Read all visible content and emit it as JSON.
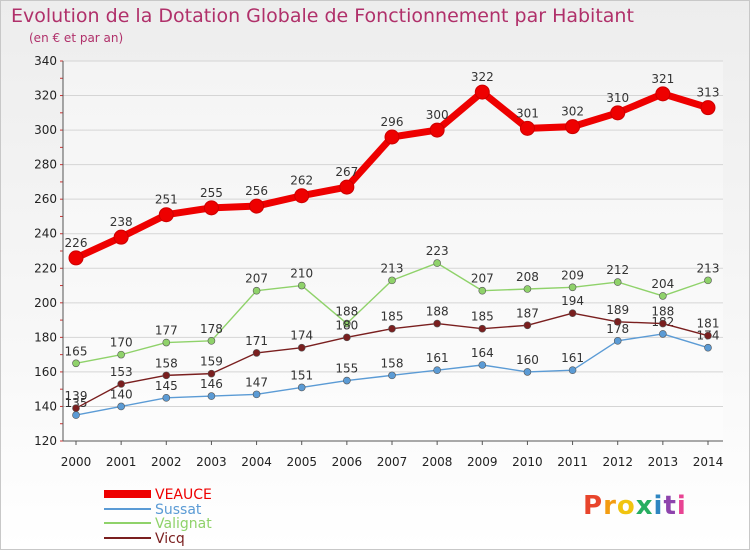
{
  "header": {
    "title": "Evolution de la Dotation Globale de Fonctionnement par Habitant",
    "subtitle": "(en € et par an)"
  },
  "logo": {
    "text": "Proxiti",
    "letters": [
      "P",
      "r",
      "o",
      "x",
      "i",
      "t",
      "i"
    ],
    "colors": [
      "#e8452c",
      "#f39c12",
      "#f1c40f",
      "#27ae60",
      "#2e86c1",
      "#8e44ad",
      "#e84393"
    ]
  },
  "chart_data": {
    "type": "line",
    "title": "Evolution de la Dotation Globale de Fonctionnement par Habitant",
    "subtitle": "(en € et par an)",
    "xlabel": "",
    "ylabel": "",
    "ylim": [
      120,
      340
    ],
    "yticks": [
      120,
      140,
      160,
      180,
      200,
      220,
      240,
      260,
      280,
      300,
      320,
      340
    ],
    "categories": [
      "2000",
      "2001",
      "2002",
      "2003",
      "2004",
      "2005",
      "2006",
      "2007",
      "2008",
      "2009",
      "2010",
      "2011",
      "2012",
      "2013",
      "2014"
    ],
    "grid": "horizontal",
    "legend_position": "bottom-left",
    "series": [
      {
        "name": "VEAUCE",
        "color": "#ee0000",
        "labels": [
          "226",
          "238",
          "251",
          "255",
          "256",
          "262",
          "267",
          "296",
          "300",
          "322",
          "301",
          "302",
          "310",
          "321",
          "313"
        ],
        "values": [
          226,
          238,
          251,
          255,
          256,
          262,
          267,
          296,
          300,
          322,
          301,
          302,
          310,
          321,
          313
        ]
      },
      {
        "name": "Sussat",
        "color": "#5b9bd5",
        "labels": [
          "135",
          "140",
          "145",
          "146",
          "147",
          "151",
          "155",
          "158",
          "161",
          "164",
          "160",
          "161",
          "178",
          "182",
          "174"
        ],
        "values": [
          135,
          140,
          145,
          146,
          147,
          151,
          155,
          158,
          161,
          164,
          160,
          161,
          178,
          182,
          174
        ]
      },
      {
        "name": "Valignat",
        "color": "#8fd26a",
        "labels": [
          "165",
          "170",
          "177",
          "178",
          "207",
          "210",
          "188",
          "213",
          "223",
          "207",
          "208",
          "209",
          "212",
          "204",
          "213"
        ],
        "values": [
          165,
          170,
          177,
          178,
          207,
          210,
          188,
          213,
          223,
          207,
          208,
          209,
          212,
          204,
          213
        ]
      },
      {
        "name": "Vicq",
        "color": "#7a1f1f",
        "labels": [
          "139",
          "153",
          "158",
          "159",
          "171",
          "174",
          "180",
          "185",
          "188",
          "185",
          "187",
          "194",
          "189",
          "188",
          "181"
        ],
        "values": [
          139,
          153,
          158,
          159,
          171,
          174,
          180,
          185,
          188,
          185,
          187,
          194,
          189,
          188,
          181
        ]
      }
    ]
  }
}
